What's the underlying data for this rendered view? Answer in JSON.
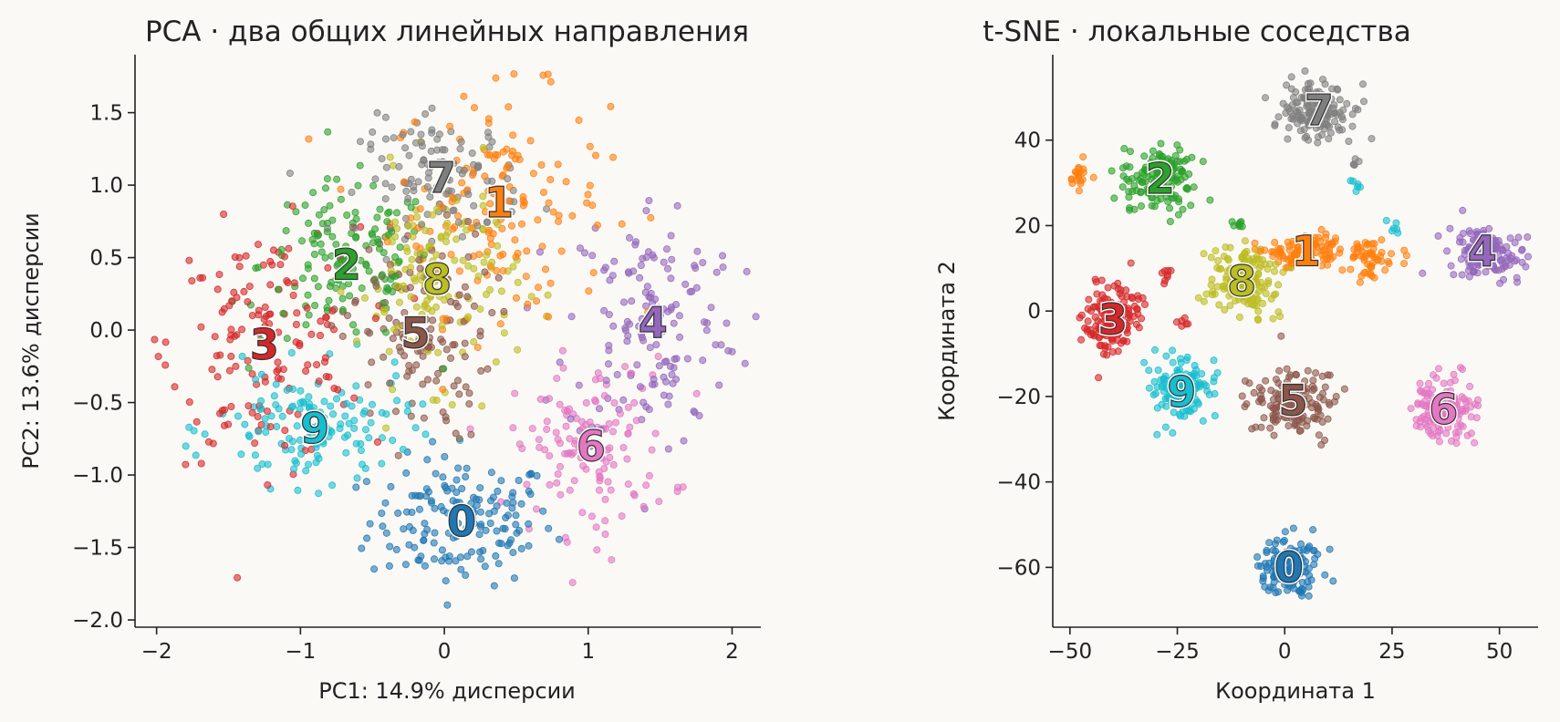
{
  "chart_data": [
    {
      "type": "scatter",
      "title": "PCA · два общих линейных направления",
      "xlabel": "PC1: 14.9% дисперсии",
      "ylabel": "PC2: 13.6% дисперсии",
      "xlim": [
        -2.15,
        2.2
      ],
      "ylim": [
        -2.05,
        1.9
      ],
      "xticks": [
        -2,
        -1,
        0,
        1,
        2
      ],
      "yticks": [
        -2.0,
        -1.5,
        -1.0,
        -0.5,
        0.0,
        0.5,
        1.0,
        1.5
      ],
      "xtick_labels": [
        "−2",
        "−1",
        "0",
        "1",
        "2"
      ],
      "ytick_labels": [
        "−2.0",
        "−1.5",
        "−1.0",
        "−0.5",
        "0.0",
        "0.5",
        "1.0",
        "1.5"
      ],
      "grid": false,
      "marker_alpha": 0.6,
      "clusters": [
        {
          "label": "0",
          "color": "#1f77b4",
          "center": [
            0.12,
            -1.32
          ],
          "spread": [
            0.32,
            0.22
          ],
          "n": 160
        },
        {
          "label": "1",
          "color": "#ff7f0e",
          "center": [
            0.38,
            0.88
          ],
          "spread": [
            0.38,
            0.38
          ],
          "n": 150
        },
        {
          "label": "2",
          "color": "#2ca02c",
          "center": [
            -0.68,
            0.45
          ],
          "spread": [
            0.3,
            0.28
          ],
          "n": 140
        },
        {
          "label": "3",
          "color": "#d62728",
          "center": [
            -1.25,
            -0.1
          ],
          "spread": [
            0.33,
            0.4
          ],
          "n": 150
        },
        {
          "label": "4",
          "color": "#9467bd",
          "center": [
            1.45,
            0.05
          ],
          "spread": [
            0.3,
            0.45
          ],
          "n": 150
        },
        {
          "label": "5",
          "color": "#8c564b",
          "center": [
            -0.2,
            -0.02
          ],
          "spread": [
            0.26,
            0.38
          ],
          "n": 130
        },
        {
          "label": "6",
          "color": "#e377c2",
          "center": [
            1.02,
            -0.8
          ],
          "spread": [
            0.28,
            0.3
          ],
          "n": 130
        },
        {
          "label": "7",
          "color": "#7f7f7f",
          "center": [
            -0.02,
            1.05
          ],
          "spread": [
            0.28,
            0.2
          ],
          "n": 120
        },
        {
          "label": "8",
          "color": "#bcbd22",
          "center": [
            -0.05,
            0.35
          ],
          "spread": [
            0.28,
            0.35
          ],
          "n": 140
        },
        {
          "label": "9",
          "color": "#17becf",
          "center": [
            -0.9,
            -0.68
          ],
          "spread": [
            0.34,
            0.2
          ],
          "n": 140
        }
      ]
    },
    {
      "type": "scatter",
      "title": "t-SNE · локальные соседства",
      "xlabel": "Координата 1",
      "ylabel": "Координата 2",
      "xlim": [
        -54,
        59
      ],
      "ylim": [
        -74,
        60
      ],
      "xticks": [
        -50,
        -25,
        0,
        25,
        50
      ],
      "yticks": [
        -60,
        -40,
        -20,
        0,
        20,
        40
      ],
      "xtick_labels": [
        "−50",
        "−25",
        "0",
        "25",
        "50"
      ],
      "ytick_labels": [
        "−60",
        "−40",
        "−20",
        "0",
        "20",
        "40"
      ],
      "grid": false,
      "marker_alpha": 0.6,
      "clusters": [
        {
          "label": "0",
          "color": "#1f77b4",
          "center": [
            1,
            -60
          ],
          "spread": [
            4.0,
            3.5
          ],
          "n": 150,
          "extra": []
        },
        {
          "label": "1",
          "color": "#ff7f0e",
          "center": [
            5,
            14
          ],
          "spread": [
            4.5,
            2.2
          ],
          "n": 110,
          "extra": [
            [
              20,
              12,
              3.2,
              2.0,
              50
            ],
            [
              -48,
              31.5,
              1.2,
              1.2,
              20
            ]
          ]
        },
        {
          "label": "2",
          "color": "#2ca02c",
          "center": [
            -29,
            31
          ],
          "spread": [
            4.0,
            4.0
          ],
          "n": 150,
          "extra": [
            [
              -11,
              20,
              1.0,
              0.6,
              8
            ]
          ]
        },
        {
          "label": "3",
          "color": "#d62728",
          "center": [
            -40,
            -2
          ],
          "spread": [
            3.0,
            4.0
          ],
          "n": 150,
          "extra": [
            [
              -28,
              8,
              1.2,
              0.8,
              8
            ],
            [
              -24,
              -3,
              0.8,
              0.8,
              6
            ]
          ]
        },
        {
          "label": "4",
          "color": "#9467bd",
          "center": [
            46,
            14
          ],
          "spread": [
            4.5,
            3.0
          ],
          "n": 140,
          "extra": []
        },
        {
          "label": "5",
          "color": "#8c564b",
          "center": [
            2,
            -21
          ],
          "spread": [
            5.0,
            4.0
          ],
          "n": 150,
          "extra": []
        },
        {
          "label": "6",
          "color": "#e377c2",
          "center": [
            37,
            -23
          ],
          "spread": [
            3.5,
            3.5
          ],
          "n": 150,
          "extra": []
        },
        {
          "label": "7",
          "color": "#7f7f7f",
          "center": [
            8,
            47
          ],
          "spread": [
            4.5,
            3.2
          ],
          "n": 150,
          "extra": [
            [
              17,
              35,
              0.8,
              0.6,
              5
            ]
          ]
        },
        {
          "label": "8",
          "color": "#bcbd22",
          "center": [
            -10,
            7
          ],
          "spread": [
            3.8,
            4.2
          ],
          "n": 150,
          "extra": []
        },
        {
          "label": "9",
          "color": "#17becf",
          "center": [
            -24,
            -19
          ],
          "spread": [
            3.0,
            3.5
          ],
          "n": 140,
          "extra": [
            [
              17,
              30,
              0.9,
              0.9,
              6
            ],
            [
              25,
              20,
              1.0,
              0.8,
              6
            ]
          ]
        }
      ]
    }
  ]
}
